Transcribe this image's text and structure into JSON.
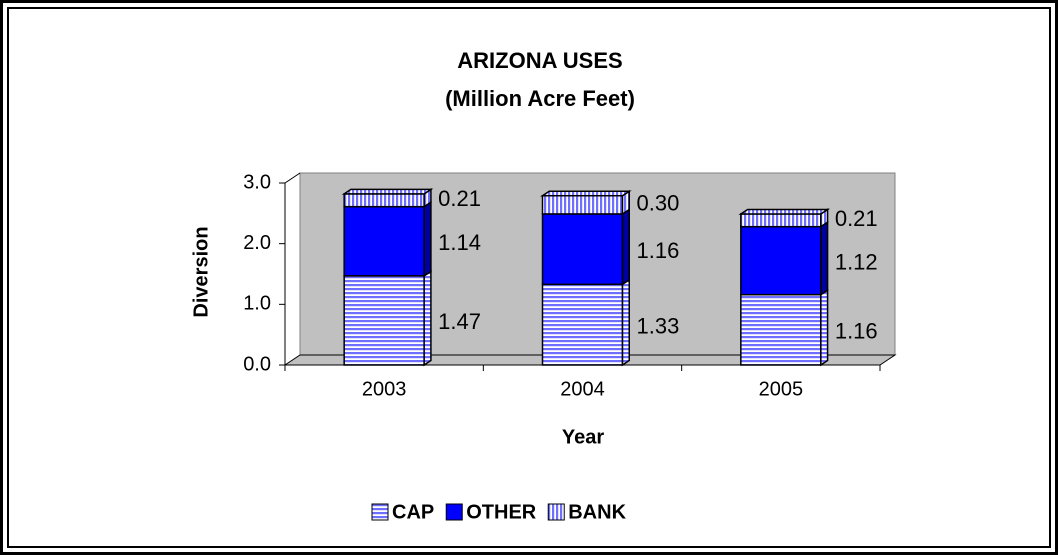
{
  "chart_data": {
    "type": "bar3d_stacked",
    "title": "ARIZONA  USES",
    "subtitle": "(Million  Acre Feet)",
    "y_label": "Diversion",
    "x_label": "Year",
    "categories": [
      "2003",
      "2004",
      "2005"
    ],
    "series": [
      {
        "name": "CAP",
        "color": "#9999ff",
        "pattern": "horizontal",
        "values": [
          1.47,
          1.33,
          1.16
        ],
        "value_labels": [
          "1.47",
          "1.33",
          "1.16"
        ]
      },
      {
        "name": "OTHER",
        "color": "#0000ff",
        "pattern": "solid",
        "values": [
          1.14,
          1.16,
          1.12
        ],
        "value_labels": [
          "1.14",
          "1.16",
          "1.12"
        ]
      },
      {
        "name": "BANK",
        "color": "#9999ff",
        "pattern": "vertical",
        "values": [
          0.21,
          0.3,
          0.21
        ],
        "value_labels": [
          "0.21",
          "0.30",
          "0.21"
        ]
      }
    ],
    "ylim": [
      0,
      3
    ],
    "yticks": [
      {
        "value": 0,
        "label": "0.0"
      },
      {
        "value": 1,
        "label": "1.0"
      },
      {
        "value": 2,
        "label": "2.0"
      },
      {
        "value": 3,
        "label": "3.0"
      }
    ],
    "legend": "bottom"
  }
}
